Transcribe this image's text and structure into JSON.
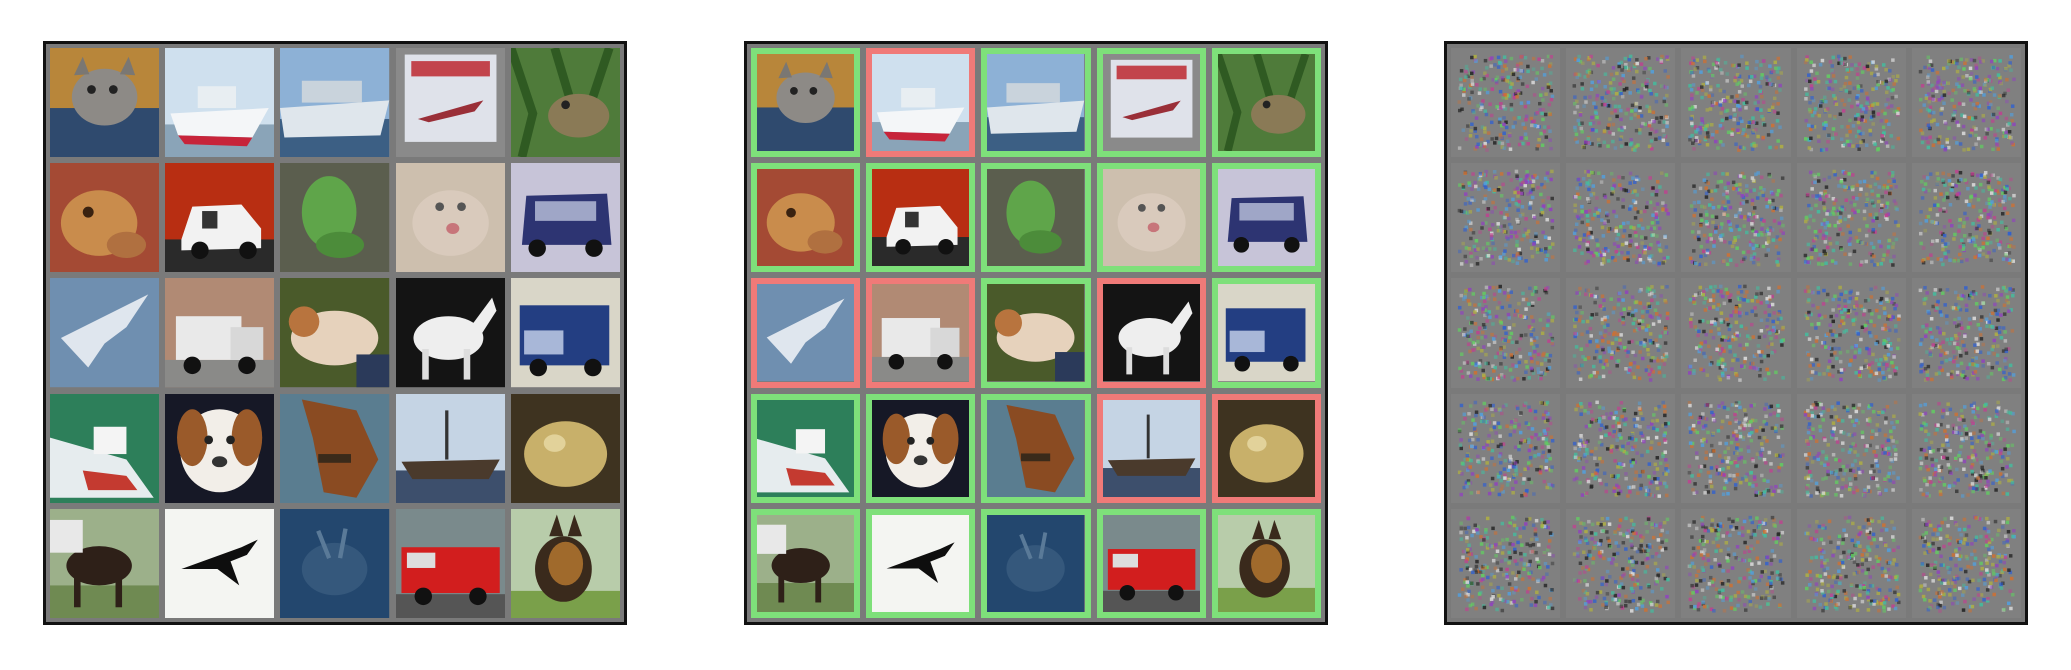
{
  "panels": [
    {
      "id": "clean",
      "images": [
        "cat",
        "ship",
        "ship",
        "airplane",
        "frog",
        "frog",
        "automobile",
        "frog",
        "cat",
        "automobile",
        "airplane",
        "truck",
        "dog",
        "horse",
        "truck",
        "ship",
        "dog",
        "horse",
        "ship",
        "frog",
        "horse",
        "airplane",
        "deer",
        "truck",
        "dog"
      ]
    },
    {
      "id": "adversarial",
      "images": [
        "cat",
        "ship",
        "ship",
        "airplane",
        "frog",
        "frog",
        "automobile",
        "frog",
        "cat",
        "automobile",
        "airplane",
        "truck",
        "dog",
        "horse",
        "truck",
        "ship",
        "dog",
        "horse",
        "ship",
        "frog",
        "horse",
        "airplane",
        "deer",
        "truck",
        "dog"
      ],
      "status": [
        "correct",
        "wrong",
        "correct",
        "correct",
        "correct",
        "correct",
        "correct",
        "correct",
        "correct",
        "correct",
        "wrong",
        "wrong",
        "correct",
        "wrong",
        "correct",
        "correct",
        "correct",
        "correct",
        "wrong",
        "wrong",
        "correct",
        "correct",
        "correct",
        "correct",
        "correct"
      ]
    },
    {
      "id": "perturbation",
      "cells": 25
    }
  ],
  "colors": {
    "correct": "#7ee07a",
    "wrong": "#f07a78",
    "grid_gap": "#7a7a7a",
    "frame": "#111111"
  }
}
